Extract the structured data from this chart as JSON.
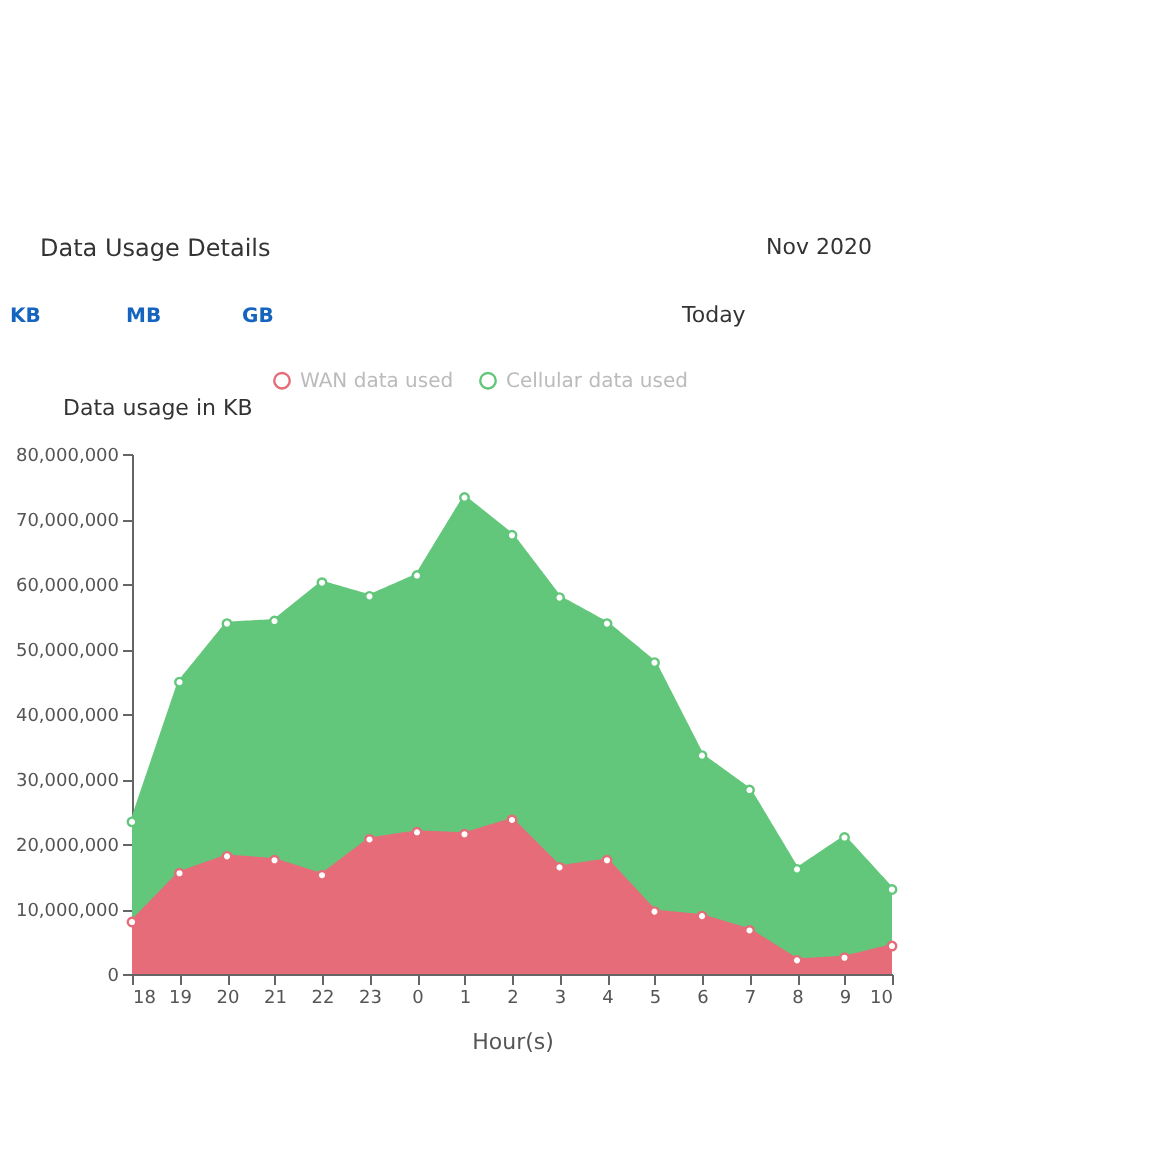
{
  "chart_data": {
    "type": "area",
    "title": "Data Usage Details",
    "subtitle": "Nov 2020",
    "annotations": [
      "KB",
      "MB",
      "GB",
      "Today"
    ],
    "xlabel": "Hour(s)",
    "ylabel": "Data usage in KB",
    "categories": [
      "18",
      "19",
      "20",
      "21",
      "22",
      "23",
      "0",
      "1",
      "2",
      "3",
      "4",
      "5",
      "6",
      "7",
      "8",
      "9",
      "10"
    ],
    "series": [
      {
        "name": "WAN data used",
        "color": "#e66c7a",
        "values": [
          8000000.0,
          15500000.0,
          18100000.0,
          17500000.0,
          15200000.0,
          20700000.0,
          21800000.0,
          21500000.0,
          23700000.0,
          16400000.0,
          17500000.0,
          9600000.0,
          8900000.0,
          6700000.0,
          2100000.0,
          2500000.0,
          4300000.0
        ]
      },
      {
        "name": "Cellular data used",
        "color": "#62c67b",
        "values": [
          23400000.0,
          44900000.0,
          53900000.0,
          54300000.0,
          60200000.0,
          58100000.0,
          61300000.0,
          73300000.0,
          67500000.0,
          57900000.0,
          53900000.0,
          47900000.0,
          33600000.0,
          28300000.0,
          16100000.0,
          21000000.0,
          13000000.0
        ]
      }
    ],
    "ylim": [
      0,
      80000000
    ],
    "yticks": [
      0,
      {
        "value": 10000000,
        "label": "10,000,000"
      },
      {
        "value": 20000000,
        "label": "20,000,000"
      },
      {
        "value": 30000000,
        "label": "30,000,000"
      },
      {
        "value": 40000000,
        "label": "40,000,000"
      },
      {
        "value": 50000000,
        "label": "50,000,000"
      },
      {
        "value": 60000000,
        "label": "60,000,000"
      },
      {
        "value": 70000000,
        "label": "70,000,000"
      },
      {
        "value": 80000000,
        "label": "80,000,000"
      }
    ],
    "grid": false,
    "legend": "top",
    "marker": "circle"
  }
}
